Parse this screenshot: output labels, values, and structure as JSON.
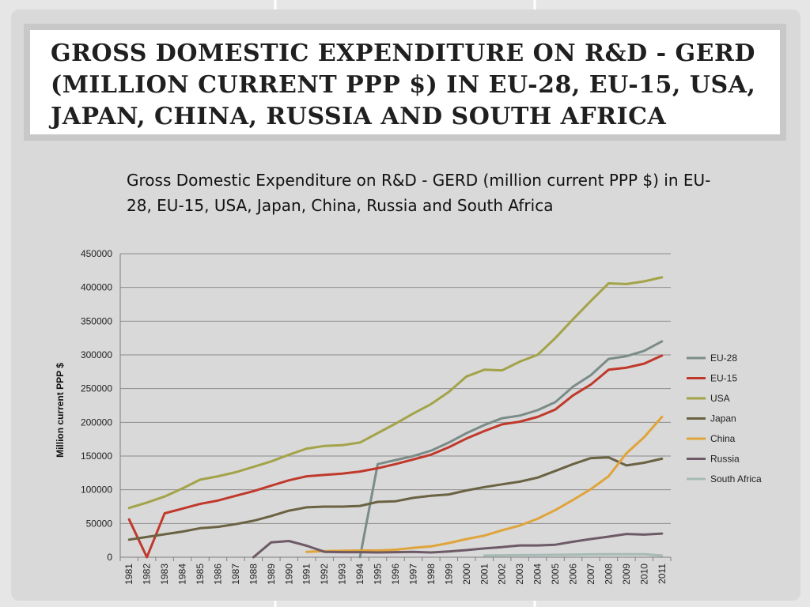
{
  "slide": {
    "title": "Gross Domestic Expenditure on R&D - GERD (million current PPP $) in EU-28, EU-15, USA, Japan, China, Russia and South Africa"
  },
  "chart_data": {
    "type": "line",
    "title": "Gross Domestic Expenditure on R&D - GERD (million current PPP $) in EU-28, EU-15, USA, Japan, China, Russia and South Africa",
    "xlabel": "",
    "ylabel": "Million current PPP $",
    "ylim": [
      0,
      450000
    ],
    "yticks": [
      0,
      50000,
      100000,
      150000,
      200000,
      250000,
      300000,
      350000,
      400000,
      450000
    ],
    "grid": true,
    "legend_position": "right",
    "categories": [
      "1981",
      "1982",
      "1983",
      "1984",
      "1985",
      "1986",
      "1987",
      "1988",
      "1989",
      "1990",
      "1991",
      "1992",
      "1993",
      "1994",
      "1995",
      "1996",
      "1997",
      "1998",
      "1999",
      "2000",
      "2001",
      "2002",
      "2003",
      "2004",
      "2005",
      "2006",
      "2007",
      "2008",
      "2009",
      "2010",
      "2011"
    ],
    "series": [
      {
        "name": "EU-28",
        "color": "#7b8c88",
        "values": [
          null,
          null,
          null,
          null,
          null,
          null,
          null,
          null,
          null,
          null,
          null,
          null,
          null,
          0,
          138000,
          144000,
          150000,
          158000,
          170000,
          184000,
          196000,
          206000,
          210000,
          218000,
          230000,
          253000,
          270000,
          294000,
          298000,
          306000,
          320000
        ]
      },
      {
        "name": "EU-15",
        "color": "#c0392b",
        "values": [
          56000,
          0,
          65000,
          72000,
          79000,
          84000,
          91000,
          98000,
          106000,
          114000,
          120000,
          122000,
          124000,
          127000,
          132000,
          138000,
          145000,
          152000,
          163000,
          176000,
          187000,
          197000,
          201000,
          208000,
          219000,
          240000,
          256000,
          278000,
          281000,
          287000,
          299000
        ]
      },
      {
        "name": "USA",
        "color": "#a3a34a",
        "values": [
          73000,
          81000,
          90000,
          102000,
          115000,
          120000,
          126000,
          134000,
          142000,
          152000,
          161000,
          165000,
          166000,
          170000,
          184000,
          198000,
          213000,
          227000,
          245000,
          268000,
          278000,
          277000,
          290000,
          300000,
          325000,
          353000,
          380000,
          406000,
          405000,
          409000,
          415000
        ]
      },
      {
        "name": "Japan",
        "color": "#6b6243",
        "values": [
          26000,
          30000,
          34000,
          38000,
          43000,
          45000,
          49000,
          54000,
          61000,
          69000,
          74000,
          75000,
          75000,
          76000,
          82000,
          83000,
          88000,
          91000,
          93000,
          99000,
          104000,
          108000,
          112000,
          118000,
          128000,
          138000,
          147000,
          148000,
          136000,
          140000,
          146000
        ]
      },
      {
        "name": "China",
        "color": "#e0a43a",
        "values": [
          null,
          null,
          null,
          null,
          null,
          null,
          null,
          null,
          null,
          null,
          8000,
          9000,
          9500,
          10000,
          10000,
          11000,
          14000,
          16000,
          21000,
          27000,
          32000,
          40000,
          47000,
          57000,
          70000,
          85000,
          101000,
          120000,
          154000,
          178000,
          208000
        ]
      },
      {
        "name": "Russia",
        "color": "#6e5a67",
        "values": [
          null,
          null,
          null,
          null,
          null,
          null,
          null,
          0,
          22000,
          24000,
          17000,
          8000,
          7500,
          7500,
          7000,
          7500,
          8000,
          7000,
          8500,
          10500,
          13000,
          15000,
          17500,
          17500,
          18500,
          23000,
          27000,
          30500,
          34500,
          33500,
          35000
        ]
      },
      {
        "name": "South Africa",
        "color": "#a6bab6",
        "values": [
          null,
          null,
          null,
          null,
          null,
          null,
          null,
          null,
          null,
          null,
          null,
          null,
          null,
          null,
          null,
          null,
          null,
          null,
          null,
          null,
          2500,
          2800,
          3000,
          3300,
          3500,
          3800,
          4200,
          4500,
          4500,
          4500,
          2500
        ]
      }
    ]
  }
}
